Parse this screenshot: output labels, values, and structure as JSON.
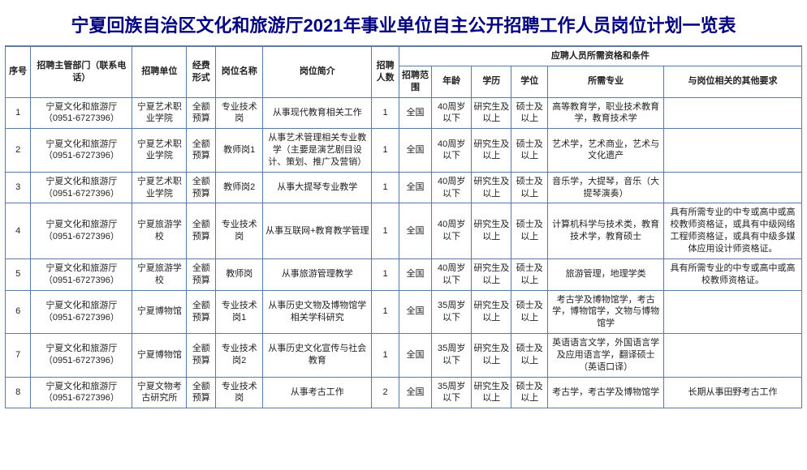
{
  "title": "宁夏回族自治区文化和旅游厅2021年事业单位自主公开招聘工作人员岗位计划一览表",
  "headers": {
    "seq": "序号",
    "dept": "招聘主管部门（联系电话）",
    "unit": "招聘单位",
    "fund": "经费形式",
    "pos": "岗位名称",
    "desc": "岗位简介",
    "cnt": "招聘人数",
    "group": "应聘人员所需资格和条件",
    "scope": "招聘范围",
    "age": "年龄",
    "edu": "学历",
    "deg": "学位",
    "major": "所需专业",
    "other": "与岗位相关的其他要求"
  },
  "rows": [
    {
      "seq": "1",
      "dept": "宁夏文化和旅游厅（0951-6727396）",
      "unit": "宁夏艺术职业学院",
      "fund": "全额预算",
      "pos": "专业技术岗",
      "desc": "从事现代教育相关工作",
      "cnt": "1",
      "scope": "全国",
      "age": "40周岁以下",
      "edu": "研究生及以上",
      "deg": "硕士及以上",
      "major": "高等教育学，职业技术教育学，教育技术学",
      "other": ""
    },
    {
      "seq": "2",
      "dept": "宁夏文化和旅游厅（0951-6727396）",
      "unit": "宁夏艺术职业学院",
      "fund": "全额预算",
      "pos": "教师岗1",
      "desc": "从事艺术管理相关专业教学（主要是演艺剧目设计、策划、推广及营销）",
      "cnt": "1",
      "scope": "全国",
      "age": "40周岁以下",
      "edu": "研究生及以上",
      "deg": "硕士及以上",
      "major": "艺术学，艺术商业，艺术与文化遗产",
      "other": ""
    },
    {
      "seq": "3",
      "dept": "宁夏文化和旅游厅（0951-6727396）",
      "unit": "宁夏艺术职业学院",
      "fund": "全额预算",
      "pos": "教师岗2",
      "desc": "从事大提琴专业教学",
      "cnt": "1",
      "scope": "全国",
      "age": "40周岁以下",
      "edu": "研究生及以上",
      "deg": "硕士及以上",
      "major": "音乐学，大提琴，音乐（大提琴演奏）",
      "other": ""
    },
    {
      "seq": "4",
      "dept": "宁夏文化和旅游厅（0951-6727396）",
      "unit": "宁夏旅游学校",
      "fund": "全额预算",
      "pos": "专业技术岗",
      "desc": "从事互联网+教育教学管理",
      "cnt": "1",
      "scope": "全国",
      "age": "40周岁以下",
      "edu": "研究生及以上",
      "deg": "硕士及以上",
      "major": "计算机科学与技术类，教育技术学，教育硕士",
      "other": "具有所需专业的中专或高中或高校教师资格证，或具有中级网络工程师资格证，或具有中级多媒体应用设计师资格证。"
    },
    {
      "seq": "5",
      "dept": "宁夏文化和旅游厅（0951-6727396）",
      "unit": "宁夏旅游学校",
      "fund": "全额预算",
      "pos": "教师岗",
      "desc": "从事旅游管理教学",
      "cnt": "1",
      "scope": "全国",
      "age": "40周岁以下",
      "edu": "研究生及以上",
      "deg": "硕士及以上",
      "major": "旅游管理，地理学类",
      "other": "具有所需专业的中专或高中或高校教师资格证。"
    },
    {
      "seq": "6",
      "dept": "宁夏文化和旅游厅（0951-6727396）",
      "unit": "宁夏博物馆",
      "fund": "全额预算",
      "pos": "专业技术岗1",
      "desc": "从事历史文物及博物馆学相关学科研究",
      "cnt": "1",
      "scope": "全国",
      "age": "35周岁以下",
      "edu": "研究生及以上",
      "deg": "硕士及以上",
      "major": "考古学及博物馆学，考古学，博物馆学，文物与博物馆学",
      "other": ""
    },
    {
      "seq": "7",
      "dept": "宁夏文化和旅游厅（0951-6727396）",
      "unit": "宁夏博物馆",
      "fund": "全额预算",
      "pos": "专业技术岗2",
      "desc": "从事历史文化宣传与社会教育",
      "cnt": "1",
      "scope": "全国",
      "age": "35周岁以下",
      "edu": "研究生及以上",
      "deg": "硕士及以上",
      "major": "英语语言文学，外国语言学及应用语言学，翻译硕士（英语口译）",
      "other": ""
    },
    {
      "seq": "8",
      "dept": "宁夏文化和旅游厅（0951-6727396）",
      "unit": "宁夏文物考古研究所",
      "fund": "全额预算",
      "pos": "专业技术岗",
      "desc": "从事考古工作",
      "cnt": "2",
      "scope": "全国",
      "age": "35周岁以下",
      "edu": "研究生及以上",
      "deg": "硕士及以上",
      "major": "考古学，考古学及博物馆学",
      "other": "长期从事田野考古工作"
    }
  ]
}
